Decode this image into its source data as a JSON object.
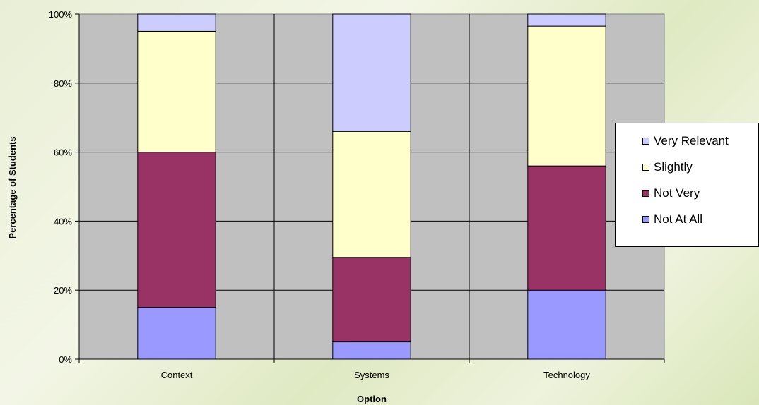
{
  "chart_data": {
    "type": "bar",
    "stacked": true,
    "categories": [
      "Context",
      "Systems",
      "Technology"
    ],
    "series": [
      {
        "name": "Not At All",
        "color": "#9999ff",
        "values": [
          15,
          5,
          20
        ]
      },
      {
        "name": "Not Very",
        "color": "#993366",
        "values": [
          45,
          24.5,
          36
        ]
      },
      {
        "name": "Slightly",
        "color": "#ffffcc",
        "values": [
          35,
          36.5,
          40.5
        ]
      },
      {
        "name": "Very Relevant",
        "color": "#ccccff",
        "values": [
          5,
          34,
          3.5
        ]
      }
    ],
    "xlabel": "Option",
    "ylabel": "Percentage of Students",
    "ylim": [
      0,
      100
    ],
    "yticks": [
      "0%",
      "20%",
      "40%",
      "60%",
      "80%",
      "100%"
    ],
    "grid": true,
    "plot_background": "#c0c0c0",
    "legend_position": "right",
    "legend_order": [
      "Very Relevant",
      "Slightly",
      "Not Very",
      "Not At All"
    ]
  }
}
